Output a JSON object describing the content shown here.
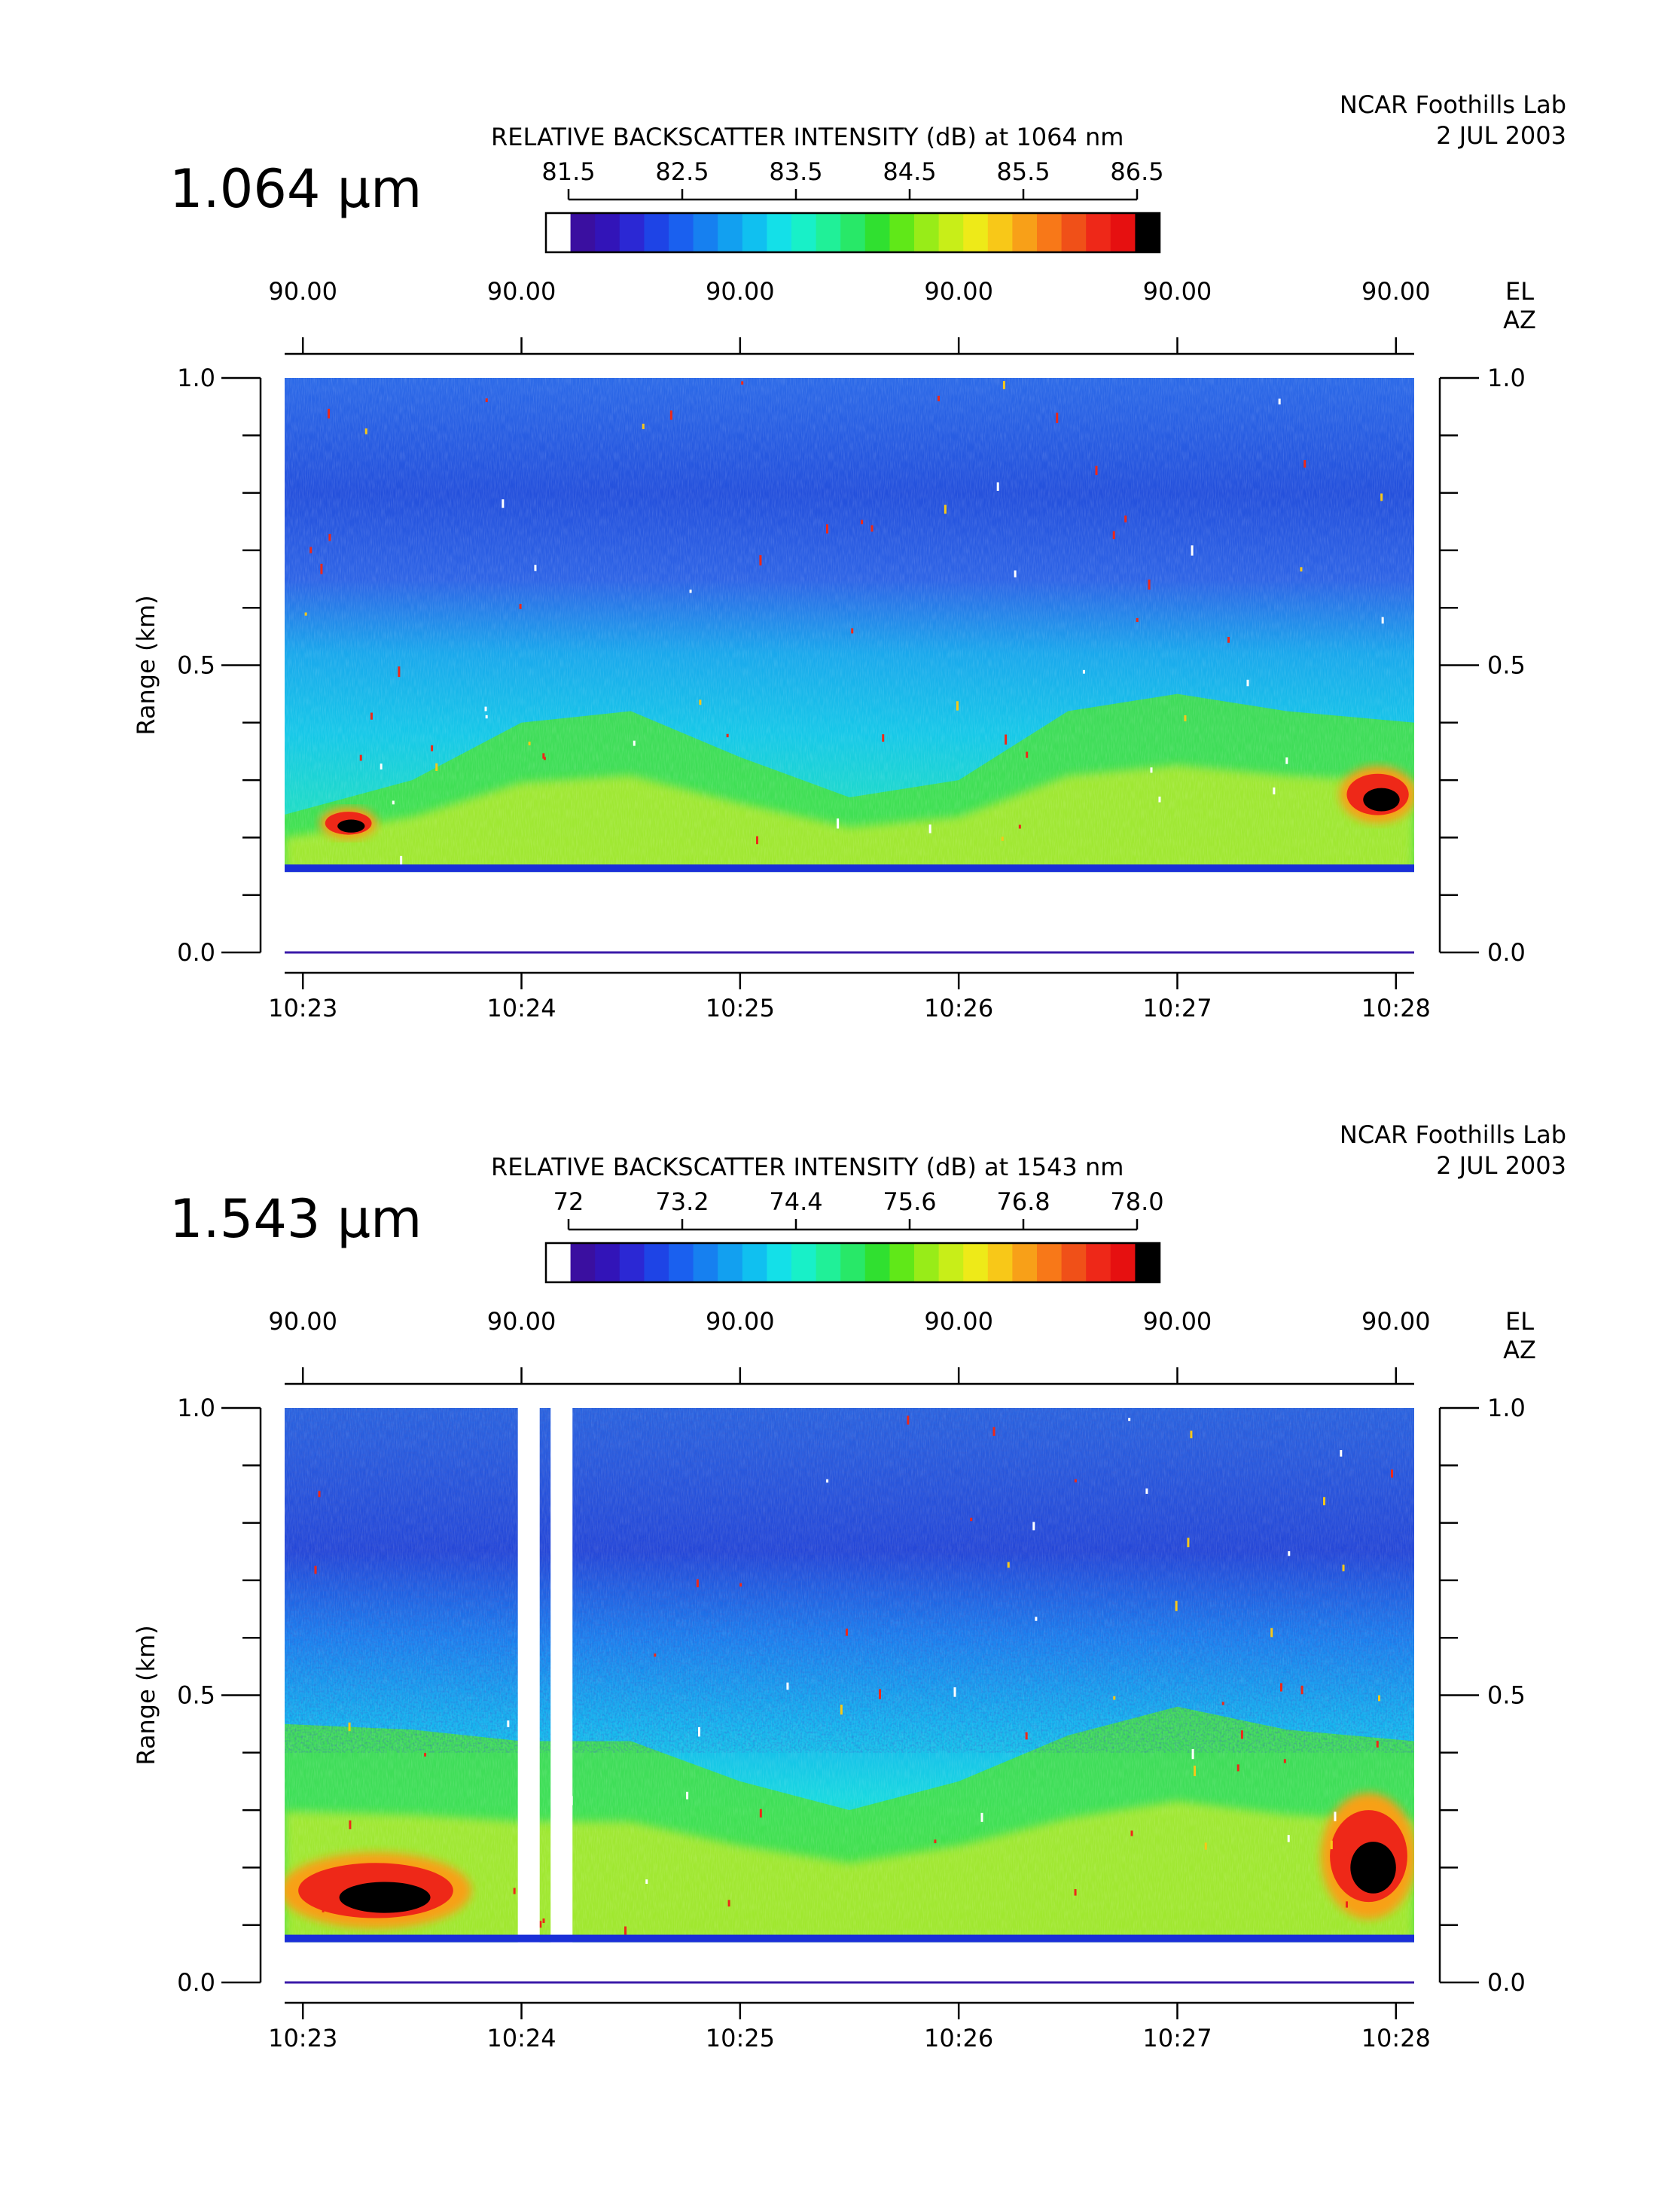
{
  "chart_data": [
    {
      "type": "heatmap",
      "wavelength_label": "1.064 μm",
      "title": "RELATIVE BACKSCATTER INTENSITY (dB) at 1064 nm",
      "site": "NCAR Foothills Lab",
      "date": "2 JUL 2003",
      "colorbar_ticks": [
        "81.5",
        "82.5",
        "83.5",
        "84.5",
        "85.5",
        "86.5"
      ],
      "colorbar_range": [
        81.5,
        86.5
      ],
      "elevation_ticks": [
        "90.00",
        "90.00",
        "90.00",
        "90.00",
        "90.00",
        "90.00"
      ],
      "el_label": "EL",
      "az_label": "AZ",
      "ylabel": "Range (km)",
      "y_ticks": [
        "1.0",
        "0.5",
        "0.0"
      ],
      "ylim": [
        0.0,
        1.0
      ],
      "x_ticks": [
        "10:23",
        "10:24",
        "10:25",
        "10:26",
        "10:27",
        "10:28"
      ],
      "xlim": [
        "10:22:55",
        "10:28:05"
      ],
      "signal_base_km": 0.14,
      "aerosol_layer_top_km": [
        {
          "t": "10:23",
          "km": 0.24
        },
        {
          "t": "10:23:30",
          "km": 0.3
        },
        {
          "t": "10:24",
          "km": 0.4
        },
        {
          "t": "10:24:30",
          "km": 0.42
        },
        {
          "t": "10:25",
          "km": 0.34
        },
        {
          "t": "10:25:30",
          "km": 0.27
        },
        {
          "t": "10:26",
          "km": 0.3
        },
        {
          "t": "10:26:30",
          "km": 0.42
        },
        {
          "t": "10:27",
          "km": 0.45
        },
        {
          "t": "10:27:30",
          "km": 0.42
        },
        {
          "t": "10:28",
          "km": 0.4
        }
      ],
      "cloud_patches": [
        {
          "t_start": "10:23:05",
          "t_end": "10:23:20",
          "km_low": 0.2,
          "km_high": 0.25
        },
        {
          "t_start": "10:27:45",
          "t_end": "10:28:05",
          "km_low": 0.23,
          "km_high": 0.32
        }
      ]
    },
    {
      "type": "heatmap",
      "wavelength_label": "1.543 μm",
      "title": "RELATIVE BACKSCATTER INTENSITY (dB) at 1543 nm",
      "site": "NCAR Foothills Lab",
      "date": "2 JUL 2003",
      "colorbar_ticks": [
        "72",
        "73.2",
        "74.4",
        "75.6",
        "76.8",
        "78.0"
      ],
      "colorbar_range": [
        72,
        78
      ],
      "elevation_ticks": [
        "90.00",
        "90.00",
        "90.00",
        "90.00",
        "90.00",
        "90.00"
      ],
      "el_label": "EL",
      "az_label": "AZ",
      "ylabel": "Range (km)",
      "y_ticks": [
        "1.0",
        "0.5",
        "0.0"
      ],
      "ylim": [
        0.0,
        1.0
      ],
      "x_ticks": [
        "10:23",
        "10:24",
        "10:25",
        "10:26",
        "10:27",
        "10:28"
      ],
      "xlim": [
        "10:22:55",
        "10:28:05"
      ],
      "signal_base_km": 0.07,
      "aerosol_layer_top_km": [
        {
          "t": "10:23",
          "km": 0.45
        },
        {
          "t": "10:23:30",
          "km": 0.44
        },
        {
          "t": "10:24",
          "km": 0.42
        },
        {
          "t": "10:24:30",
          "km": 0.42
        },
        {
          "t": "10:25",
          "km": 0.35
        },
        {
          "t": "10:25:30",
          "km": 0.3
        },
        {
          "t": "10:26",
          "km": 0.35
        },
        {
          "t": "10:26:30",
          "km": 0.43
        },
        {
          "t": "10:27",
          "km": 0.48
        },
        {
          "t": "10:27:30",
          "km": 0.44
        },
        {
          "t": "10:28",
          "km": 0.42
        }
      ],
      "cloud_patches": [
        {
          "t_start": "10:22:55",
          "t_end": "10:23:45",
          "km_low": 0.1,
          "km_high": 0.22
        },
        {
          "t_start": "10:27:40",
          "t_end": "10:28:05",
          "km_low": 0.12,
          "km_high": 0.32
        }
      ],
      "data_gaps": [
        {
          "t_start": "10:23:59",
          "t_end": "10:24:05"
        },
        {
          "t_start": "10:24:08",
          "t_end": "10:24:14"
        }
      ]
    }
  ]
}
